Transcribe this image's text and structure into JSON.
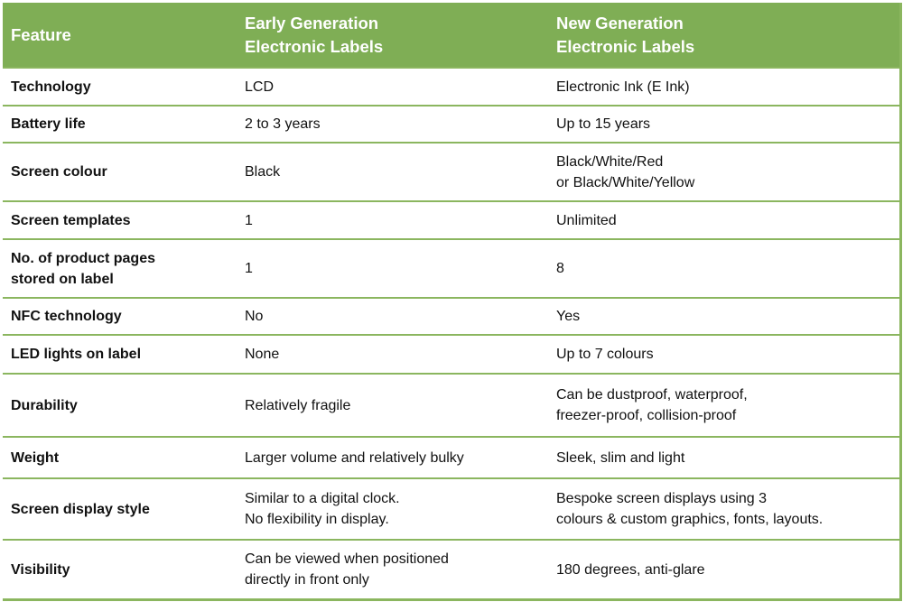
{
  "header": {
    "feature": "Feature",
    "early": "Early Generation\nElectronic Labels",
    "new": "New Generation\nElectronic Labels"
  },
  "rows": [
    {
      "feature": "Technology",
      "early": "LCD",
      "new": "Electronic Ink (E Ink)"
    },
    {
      "feature": "Battery life",
      "early": "2 to 3 years",
      "new": "Up to 15 years"
    },
    {
      "feature": "Screen colour",
      "early": "Black",
      "new": "Black/White/Red\nor Black/White/Yellow"
    },
    {
      "feature": "Screen templates",
      "early": "1",
      "new": "Unlimited"
    },
    {
      "feature": "No. of product pages\nstored on label",
      "early": "1",
      "new": "8"
    },
    {
      "feature": "NFC technology",
      "early": "No",
      "new": "Yes"
    },
    {
      "feature": "LED lights on label",
      "early": "None",
      "new": "Up to 7 colours"
    },
    {
      "feature": "Durability",
      "early": "Relatively fragile",
      "new": "Can be dustproof, waterproof,\nfreezer-proof, collision-proof"
    },
    {
      "feature": "Weight",
      "early": "Larger volume and relatively bulky",
      "new": "Sleek, slim and light"
    },
    {
      "feature": "Screen display style",
      "early": "Similar to a digital clock.\nNo flexibility in display.",
      "new": "Bespoke screen displays using 3\ncolours & custom graphics, fonts, layouts."
    },
    {
      "feature": "Visibility",
      "early": "Can be viewed when positioned\ndirectly in front only",
      "new": "180 degrees, anti-glare"
    }
  ],
  "colors": {
    "header_bg": "#7fae55",
    "border": "#8bb65f"
  }
}
